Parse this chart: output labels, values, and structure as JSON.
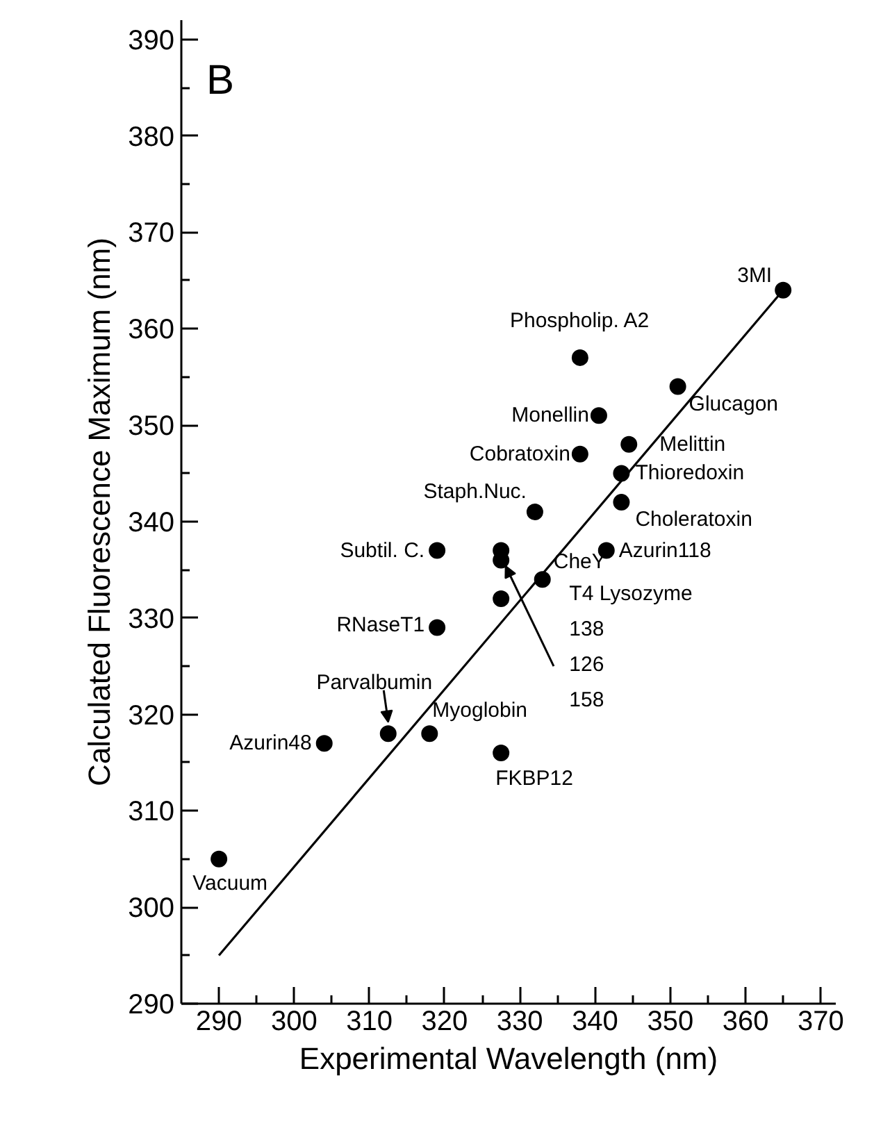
{
  "chart_data": {
    "type": "scatter",
    "xlabel": "Experimental Wavelength (nm)",
    "ylabel": "Calculated Fluorescence Maximum (nm)",
    "xlim": [
      285,
      372
    ],
    "ylim": [
      290,
      392
    ],
    "xticks": [
      290,
      300,
      310,
      320,
      330,
      340,
      350,
      360,
      370
    ],
    "yticks": [
      290,
      300,
      310,
      320,
      330,
      340,
      350,
      360,
      370,
      380,
      390
    ],
    "grid": false,
    "marker": "circle",
    "series": [
      {
        "color": "#000000",
        "x": [
          290,
          304,
          312.5,
          318,
          327.5,
          319,
          319,
          327.5,
          327.5,
          327.5,
          333,
          332,
          341.5,
          343.5,
          343.5,
          344.5,
          338,
          340.5,
          338,
          351,
          365
        ],
        "values": [
          305,
          317,
          318,
          318,
          316,
          329,
          337,
          337,
          336,
          332,
          334,
          341,
          337,
          342,
          345,
          348,
          347,
          351,
          357,
          354,
          364
        ]
      },
      {
        "type": "line",
        "color": "#000000",
        "marker": "none",
        "line_style": "solid",
        "x": [
          290,
          365
        ],
        "values": [
          295,
          364
        ]
      }
    ],
    "annotations": [
      "B",
      {
        "text": "Vacuum",
        "x": 290,
        "y": 305
      },
      {
        "text": "Azurin48",
        "x": 304,
        "y": 317
      },
      {
        "text": "Parvalbumin",
        "x": 312.5,
        "y": 318
      },
      {
        "text": "Myoglobin",
        "x": 318,
        "y": 318
      },
      {
        "text": "FKBP12",
        "x": 327.5,
        "y": 316
      },
      {
        "text": "RNaseT1",
        "x": 319,
        "y": 329
      },
      {
        "text": "Subtil. C.",
        "x": 319,
        "y": 337
      },
      {
        "text": "T4 Lysozyme\n138\n126\n158",
        "x": 327.5,
        "y": 336
      },
      {
        "text": "CheY",
        "x": 333,
        "y": 334
      },
      {
        "text": "Staph.Nuc.",
        "x": 332,
        "y": 341
      },
      {
        "text": "Azurin118",
        "x": 341.5,
        "y": 337
      },
      {
        "text": "Choleratoxin",
        "x": 343.5,
        "y": 342
      },
      {
        "text": "Thioredoxin",
        "x": 343.5,
        "y": 345
      },
      {
        "text": "Melittin",
        "x": 344.5,
        "y": 348
      },
      {
        "text": "Cobratoxin",
        "x": 338,
        "y": 347
      },
      {
        "text": "Monellin",
        "x": 340.5,
        "y": 351
      },
      {
        "text": "Phospholip. A2",
        "x": 338,
        "y": 357
      },
      {
        "text": "Glucagon",
        "x": 351,
        "y": 354
      },
      {
        "text": "3MI",
        "x": 365,
        "y": 364
      }
    ]
  }
}
